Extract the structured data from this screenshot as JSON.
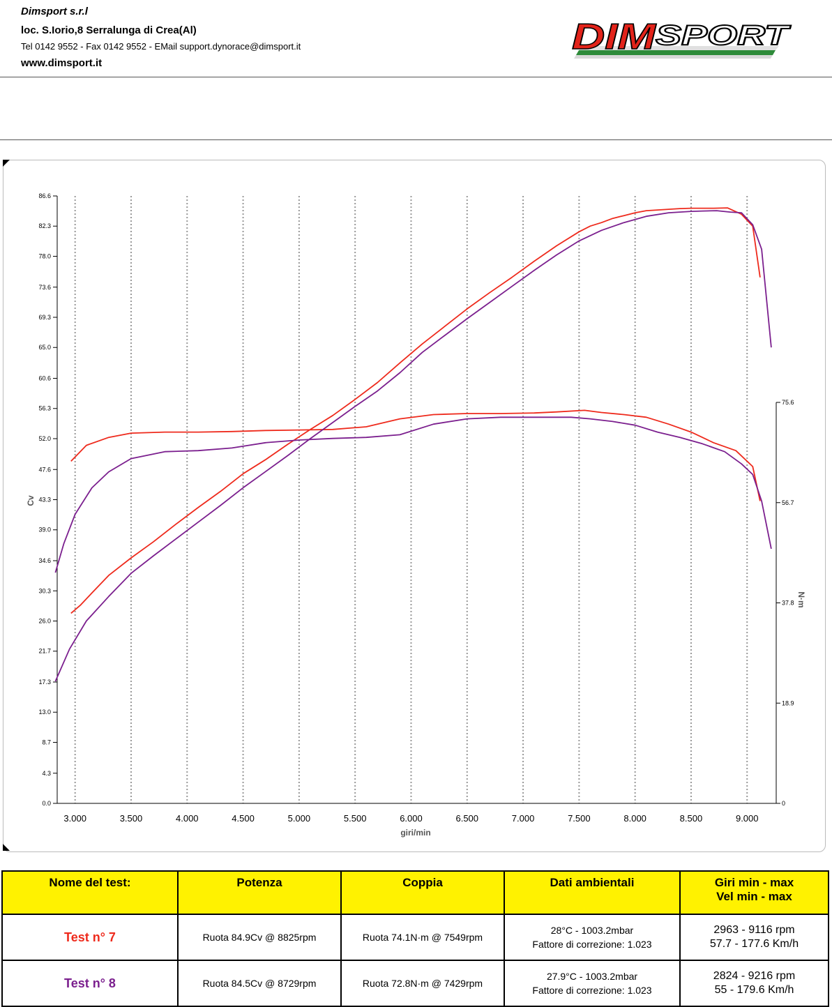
{
  "header": {
    "company": "Dimsport s.r.l",
    "address": "loc. S.Iorio,8 Serralunga di Crea(Al)",
    "contacts": "Tel 0142 9552 - Fax 0142 9552 - EMail support.dynorace@dimsport.it",
    "website": "www.dimsport.it",
    "logo_text": "DIMSPORT"
  },
  "colors": {
    "test7": "#ee2a1c",
    "test8": "#7b1f8e",
    "table_header": "#fff200",
    "grid": "#999999"
  },
  "chart_data": {
    "type": "line",
    "xlabel": "giri/min",
    "ylabel": "Cv",
    "y2label": "N·m",
    "xlim": [
      2840,
      9260
    ],
    "ylim": [
      0,
      86.6
    ],
    "y2lim": [
      0,
      75.6
    ],
    "x_ticks": [
      "3.000",
      "3.500",
      "4.000",
      "4.500",
      "5.000",
      "5.500",
      "6.000",
      "6.500",
      "7.000",
      "7.500",
      "8.000",
      "8.500",
      "9.000"
    ],
    "x_tick_values": [
      3000,
      3500,
      4000,
      4500,
      5000,
      5500,
      6000,
      6500,
      7000,
      7500,
      8000,
      8500,
      9000
    ],
    "y_ticks": [
      "0.0",
      "4.3",
      "8.7",
      "13.0",
      "17.3",
      "21.7",
      "26.0",
      "30.3",
      "34.6",
      "39.0",
      "43.3",
      "47.6",
      "52.0",
      "56.3",
      "60.6",
      "65.0",
      "69.3",
      "73.6",
      "78.0",
      "82.3",
      "86.6"
    ],
    "y2_ticks": [
      "0",
      "18.9",
      "37.8",
      "56.7",
      "75.6"
    ],
    "grid": true,
    "series": [
      {
        "name": "Test n° 7 power",
        "axis": "left",
        "color": "#ee2a1c",
        "x": [
          2963,
          3050,
          3150,
          3300,
          3500,
          3700,
          3900,
          4100,
          4300,
          4500,
          4700,
          4900,
          5100,
          5300,
          5500,
          5700,
          5900,
          6100,
          6300,
          6500,
          6700,
          6900,
          7100,
          7300,
          7500,
          7600,
          7700,
          7800,
          7900,
          8000,
          8100,
          8200,
          8300,
          8400,
          8500,
          8600,
          8700,
          8825,
          8950,
          9050,
          9116
        ],
        "y": [
          27.1,
          28.3,
          30.0,
          32.5,
          35.0,
          37.3,
          39.8,
          42.2,
          44.5,
          47.0,
          49.0,
          51.2,
          53.3,
          55.3,
          57.6,
          60.0,
          62.8,
          65.5,
          68.0,
          70.5,
          72.8,
          75.0,
          77.3,
          79.5,
          81.5,
          82.3,
          82.8,
          83.4,
          83.8,
          84.2,
          84.5,
          84.6,
          84.7,
          84.8,
          84.85,
          84.85,
          84.85,
          84.9,
          84.0,
          82.3,
          75.0
        ]
      },
      {
        "name": "Test n° 7 torque",
        "axis": "right",
        "color": "#ee2a1c",
        "x": [
          2963,
          3100,
          3300,
          3500,
          3800,
          4100,
          4400,
          4700,
          5000,
          5300,
          5600,
          5900,
          6200,
          6500,
          6800,
          7100,
          7300,
          7549,
          7700,
          7900,
          8100,
          8300,
          8500,
          8700,
          8900,
          9050,
          9116
        ],
        "y": [
          64.5,
          67.5,
          69.0,
          69.8,
          70.0,
          70.0,
          70.1,
          70.3,
          70.4,
          70.5,
          71.0,
          72.5,
          73.3,
          73.5,
          73.5,
          73.6,
          73.8,
          74.1,
          73.7,
          73.3,
          72.8,
          71.5,
          70.0,
          68.0,
          66.5,
          63.5,
          57.0
        ]
      },
      {
        "name": "Test n° 8 power",
        "axis": "left",
        "color": "#7b1f8e",
        "x": [
          2824,
          2950,
          3100,
          3300,
          3500,
          3700,
          3900,
          4100,
          4300,
          4500,
          4700,
          4900,
          5100,
          5300,
          5500,
          5700,
          5900,
          6100,
          6300,
          6500,
          6700,
          6900,
          7100,
          7300,
          7500,
          7700,
          7900,
          8100,
          8300,
          8500,
          8600,
          8729,
          8850,
          8950,
          9050,
          9130,
          9216
        ],
        "y": [
          17.4,
          22.0,
          26.0,
          29.5,
          32.8,
          35.3,
          37.7,
          40.1,
          42.5,
          45.0,
          47.3,
          49.6,
          52.0,
          54.3,
          56.6,
          58.8,
          61.4,
          64.3,
          66.7,
          69.1,
          71.4,
          73.7,
          76.0,
          78.2,
          80.2,
          81.7,
          82.8,
          83.7,
          84.2,
          84.4,
          84.45,
          84.5,
          84.3,
          84.2,
          82.5,
          79.0,
          65.0
        ]
      },
      {
        "name": "Test n° 8 torque",
        "axis": "right",
        "color": "#7b1f8e",
        "x": [
          2824,
          2900,
          3000,
          3150,
          3300,
          3500,
          3800,
          4100,
          4400,
          4700,
          5000,
          5300,
          5600,
          5900,
          6200,
          6500,
          6800,
          7100,
          7429,
          7600,
          7800,
          8000,
          8200,
          8400,
          8600,
          8800,
          8950,
          9050,
          9130,
          9216
        ],
        "y": [
          43.5,
          49.0,
          54.5,
          59.5,
          62.5,
          65.0,
          66.3,
          66.5,
          67.0,
          68.0,
          68.5,
          68.8,
          69.0,
          69.5,
          71.5,
          72.5,
          72.8,
          72.8,
          72.8,
          72.5,
          72.0,
          71.3,
          70.0,
          69.0,
          67.8,
          66.3,
          64.0,
          62.0,
          57.0,
          48.0
        ]
      }
    ]
  },
  "table": {
    "headers": [
      "Nome del test:",
      "Potenza",
      "Coppia",
      "Dati ambientali",
      "Giri min - max",
      "Vel  min - max"
    ],
    "rows": [
      {
        "name": "Test n° 7",
        "power": "Ruota 84.9Cv @ 8825rpm",
        "torque": "Ruota 74.1N·m @ 7549rpm",
        "env1": "28°C - 1003.2mbar",
        "env2": "Fattore di correzione: 1.023",
        "rpm": "2963 - 9116 rpm",
        "speed": "57.7 - 177.6 Km/h"
      },
      {
        "name": "Test n° 8",
        "power": "Ruota 84.5Cv @ 8729rpm",
        "torque": "Ruota 72.8N·m @ 7429rpm",
        "env1": "27.9°C - 1003.2mbar",
        "env2": "Fattore di correzione: 1.023",
        "rpm": "2824 - 9216 rpm",
        "speed": "55 - 179.6 Km/h"
      }
    ]
  }
}
